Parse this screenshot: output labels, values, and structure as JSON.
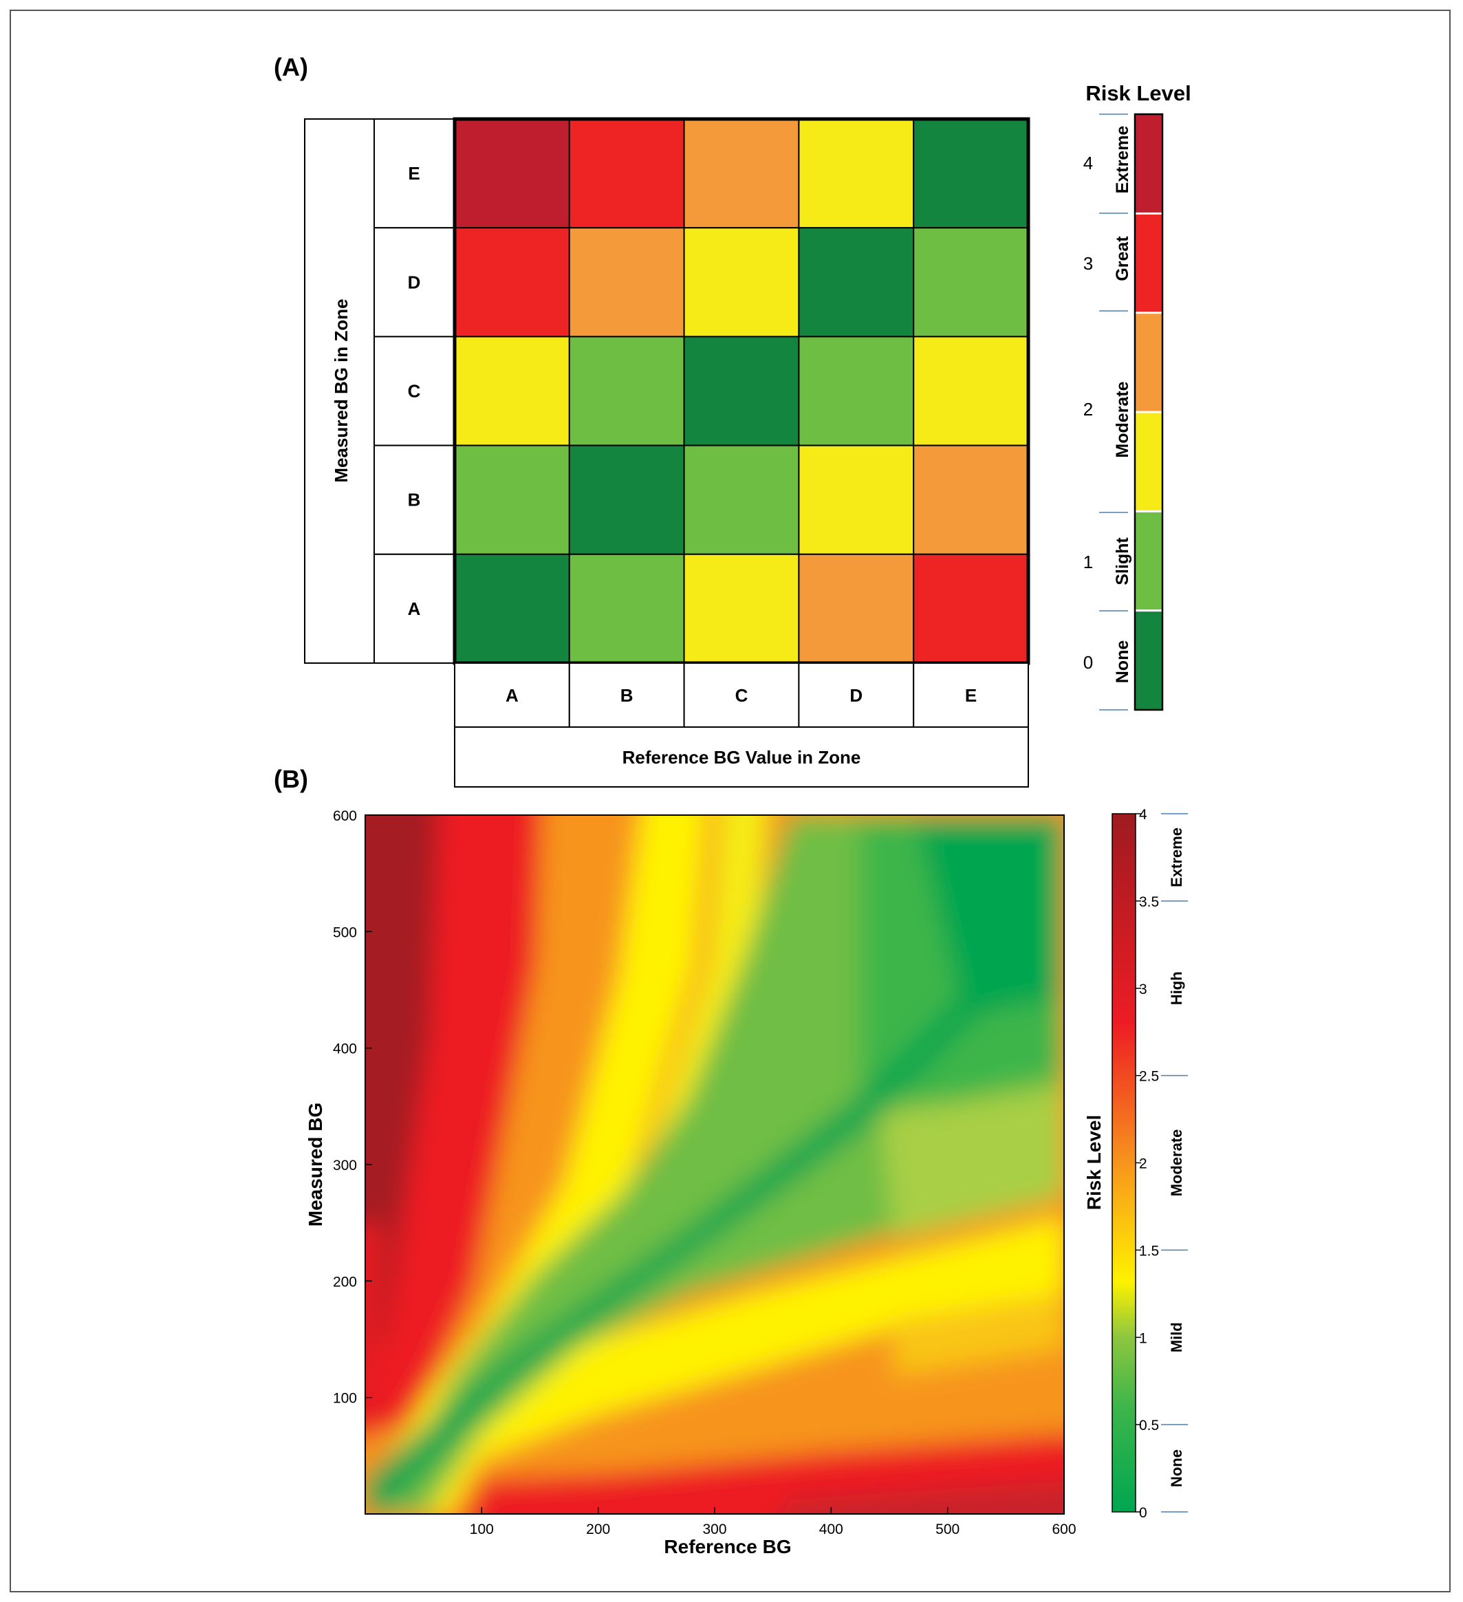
{
  "panel_a": {
    "label": "(A)"
  },
  "panel_b": {
    "label": "(B)"
  },
  "chart_data": [
    {
      "type": "heatmap",
      "panel": "(A)",
      "x_categories": [
        "A",
        "B",
        "C",
        "D",
        "E"
      ],
      "y_categories": [
        "A",
        "B",
        "C",
        "D",
        "E"
      ],
      "xlabel": "Reference BG Value in Zone",
      "ylabel": "Measured BG in Zone",
      "values_rows_top_to_bottom": [
        [
          4,
          3,
          2.5,
          1.5,
          0
        ],
        [
          3,
          2.5,
          1.5,
          0,
          1
        ],
        [
          1.5,
          1,
          0,
          1,
          1.5
        ],
        [
          1,
          0,
          1,
          1.5,
          2.5
        ],
        [
          0,
          1,
          1.5,
          2.5,
          3
        ]
      ],
      "colorbar": {
        "title": "Risk Level",
        "ticks": [
          "0",
          "1",
          "2",
          "3",
          "4"
        ],
        "level_labels": [
          "None",
          "Slight",
          "Moderate",
          "Great",
          "Extreme"
        ],
        "colors": [
          "#13853f",
          "#6fbe44",
          "#f6eb16",
          "#f59a3a",
          "#ee2424",
          "#be1e2d"
        ]
      }
    },
    {
      "type": "heatmap",
      "panel": "(B)",
      "xlabel": "Reference BG",
      "ylabel": "Measured BG",
      "xlim": [
        0,
        600
      ],
      "ylim": [
        0,
        600
      ],
      "x_ticks": [
        "100",
        "200",
        "300",
        "400",
        "500",
        "600"
      ],
      "y_ticks": [
        "100",
        "200",
        "300",
        "400",
        "500",
        "600"
      ],
      "colorbar": {
        "title": "Risk Level",
        "range": [
          0,
          4
        ],
        "ticks": [
          "0",
          "0.5",
          "1",
          "1.5",
          "2",
          "2.5",
          "3",
          "3.5",
          "4"
        ],
        "level_labels": [
          "None",
          "Mild",
          "Moderate",
          "High",
          "Extreme"
        ],
        "colormap": [
          "#00a650",
          "#8dc63f",
          "#fff200",
          "#f7941d",
          "#ed1c24",
          "#9e1b20"
        ]
      }
    }
  ]
}
